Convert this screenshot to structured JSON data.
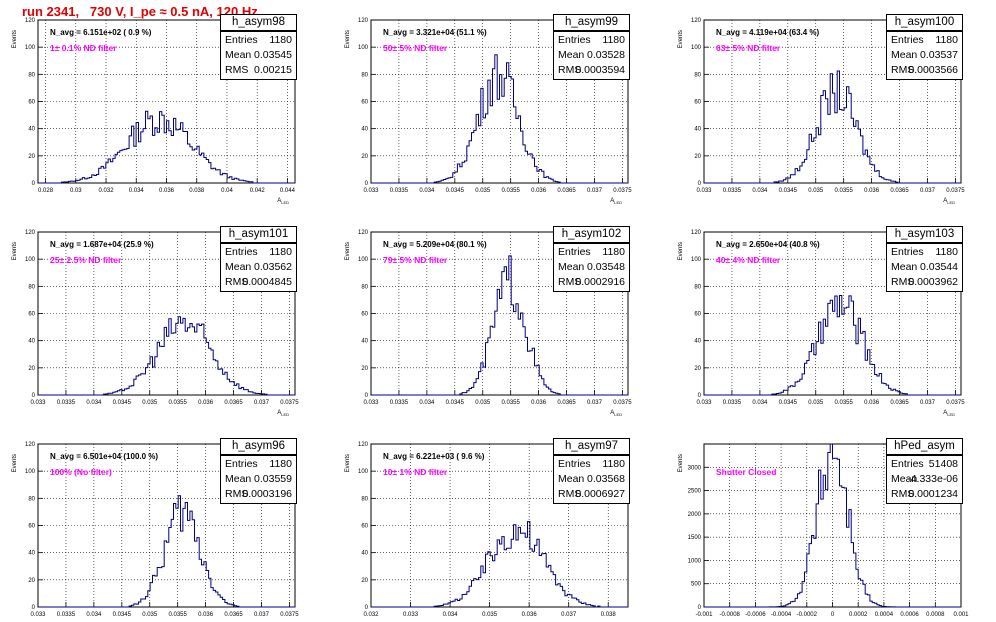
{
  "title": "run 2341,   730 V, I_pe ≈ 0.5 nA, 120 Hz",
  "colors": {
    "hist": "#000080",
    "title": "#e00000",
    "annotation": "#ff00ff",
    "grid": "#000000"
  },
  "ylabel": "Events",
  "xlabel": "A_LED",
  "stats_labels": {
    "entries": "Entries",
    "mean": "Mean",
    "rms": "RMS"
  },
  "chart_data": [
    {
      "type": "bar",
      "name": "h_asym98",
      "navg": "N_avg = 6.151e+02 ( 0.9 %)",
      "note": "1± 0.1% ND filter",
      "stats": {
        "entries": "1180",
        "mean": "0.03545",
        "rms": "0.00215"
      },
      "xlim": [
        0.0275,
        0.0445
      ],
      "xticks": [
        "0.028",
        "0.03",
        "0.032",
        "0.034",
        "0.036",
        "0.038",
        "0.04",
        "0.042",
        "0.044"
      ],
      "ylim": [
        0,
        120
      ],
      "yticks": [
        "0",
        "20",
        "40",
        "60",
        "80",
        "100",
        "120"
      ],
      "grid": true,
      "peak_x": 0.0355,
      "sigma": 0.00215,
      "peak": 47
    },
    {
      "type": "bar",
      "name": "h_asym99",
      "navg": "N_avg = 3.321e+04 (51.1 %)",
      "note": "50± 5% ND filter",
      "stats": {
        "entries": "1180",
        "mean": "0.03528",
        "rms": "0.0003594"
      },
      "xlim": [
        0.033,
        0.0376
      ],
      "xticks": [
        "0.033",
        "0.0335",
        "0.034",
        "0.0345",
        "0.035",
        "0.0355",
        "0.036",
        "0.0365",
        "0.037",
        "0.0375"
      ],
      "ylim": [
        0,
        120
      ],
      "yticks": [
        "0",
        "20",
        "40",
        "60",
        "80",
        "100",
        "120"
      ],
      "grid": true,
      "peak_x": 0.03528,
      "sigma": 0.00036,
      "peak": 80
    },
    {
      "type": "bar",
      "name": "h_asym100",
      "navg": "N_avg = 4.119e+04 (63.4 %)",
      "note": "63± 5% ND filter",
      "stats": {
        "entries": "1180",
        "mean": "0.03537",
        "rms": "0.0003566"
      },
      "xlim": [
        0.033,
        0.0376
      ],
      "xticks": [
        "0.033",
        "0.0335",
        "0.034",
        "0.0345",
        "0.035",
        "0.0355",
        "0.036",
        "0.0365",
        "0.037",
        "0.0375"
      ],
      "ylim": [
        0,
        120
      ],
      "yticks": [
        "0",
        "20",
        "40",
        "60",
        "80",
        "100",
        "120"
      ],
      "grid": true,
      "peak_x": 0.03537,
      "sigma": 0.00036,
      "peak": 67
    },
    {
      "type": "bar",
      "name": "h_asym101",
      "navg": "N_avg = 1.687e+04 (25.9 %)",
      "note": "25± 2.5% ND filter",
      "stats": {
        "entries": "1180",
        "mean": "0.03562",
        "rms": "0.0004845"
      },
      "xlim": [
        0.033,
        0.0376
      ],
      "xticks": [
        "0.033",
        "0.0335",
        "0.034",
        "0.0345",
        "0.035",
        "0.0355",
        "0.036",
        "0.0365",
        "0.037",
        "0.0375"
      ],
      "ylim": [
        0,
        120
      ],
      "yticks": [
        "0",
        "20",
        "40",
        "60",
        "80",
        "100",
        "120"
      ],
      "grid": true,
      "peak_x": 0.03562,
      "sigma": 0.00048,
      "peak": 53
    },
    {
      "type": "bar",
      "name": "h_asym102",
      "navg": "N_avg = 5.209e+04 (80.1 %)",
      "note": "79± 5% ND filter",
      "stats": {
        "entries": "1180",
        "mean": "0.03548",
        "rms": "0.0002916"
      },
      "xlim": [
        0.033,
        0.0376
      ],
      "xticks": [
        "0.033",
        "0.0335",
        "0.034",
        "0.0345",
        "0.035",
        "0.0355",
        "0.036",
        "0.0365",
        "0.037",
        "0.0375"
      ],
      "ylim": [
        0,
        120
      ],
      "yticks": [
        "0",
        "20",
        "40",
        "60",
        "80",
        "100",
        "120"
      ],
      "grid": true,
      "peak_x": 0.03548,
      "sigma": 0.00029,
      "peak": 84
    },
    {
      "type": "bar",
      "name": "h_asym103",
      "navg": "N_avg = 2.650e+04 (40.8 %)",
      "note": "40± 4% ND filter",
      "stats": {
        "entries": "1180",
        "mean": "0.03544",
        "rms": "0.0003962"
      },
      "xlim": [
        0.033,
        0.0376
      ],
      "xticks": [
        "0.033",
        "0.0335",
        "0.034",
        "0.0345",
        "0.035",
        "0.0355",
        "0.036",
        "0.0365",
        "0.037",
        "0.0375"
      ],
      "ylim": [
        0,
        120
      ],
      "yticks": [
        "0",
        "20",
        "40",
        "60",
        "80",
        "100",
        "120"
      ],
      "grid": true,
      "peak_x": 0.03544,
      "sigma": 0.0004,
      "peak": 66
    },
    {
      "type": "bar",
      "name": "h_asym96",
      "navg": "N_avg = 6.501e+04 (100.0 %)",
      "note": "100% (No filter)",
      "stats": {
        "entries": "1180",
        "mean": "0.03559",
        "rms": "0.0003196"
      },
      "xlim": [
        0.033,
        0.0376
      ],
      "xticks": [
        "0.033",
        "0.0335",
        "0.034",
        "0.0345",
        "0.035",
        "0.0355",
        "0.036",
        "0.0365",
        "0.037",
        "0.0375"
      ],
      "ylim": [
        0,
        120
      ],
      "yticks": [
        "0",
        "20",
        "40",
        "60",
        "80",
        "100",
        "120"
      ],
      "grid": true,
      "peak_x": 0.03559,
      "sigma": 0.00032,
      "peak": 70
    },
    {
      "type": "bar",
      "name": "h_asym97",
      "navg": "N_avg = 6.221e+03 ( 9.6 %)",
      "note": "10± 1% ND filter",
      "stats": {
        "entries": "1180",
        "mean": "0.03568",
        "rms": "0.0006927"
      },
      "xlim": [
        0.032,
        0.0385
      ],
      "xticks": [
        "0.032",
        "0.033",
        "0.034",
        "0.035",
        "0.036",
        "0.037",
        "0.038"
      ],
      "ylim": [
        0,
        120
      ],
      "yticks": [
        "0",
        "20",
        "40",
        "60",
        "80",
        "100",
        "120"
      ],
      "grid": true,
      "peak_x": 0.03568,
      "sigma": 0.00069,
      "peak": 57
    },
    {
      "type": "bar",
      "name": "hPed_asym",
      "navg": "",
      "note": "Shutter Closed",
      "stats": {
        "entries": "51408",
        "mean": "-4.333e-06",
        "rms": "0.0001234"
      },
      "xlim": [
        -0.001,
        0.001
      ],
      "xticks": [
        "-0.001",
        "-0.0008",
        "-0.0006",
        "-0.0004",
        "-0.0002",
        "0",
        "0.0002",
        "0.0004",
        "0.0006",
        "0.0008",
        "0.001"
      ],
      "ylim": [
        0,
        3500
      ],
      "yticks": [
        "0",
        "500",
        "1000",
        "1500",
        "2000",
        "2500",
        "3000"
      ],
      "grid": true,
      "peak_x": 0.0,
      "sigma": 0.00012,
      "peak": 3350
    }
  ]
}
